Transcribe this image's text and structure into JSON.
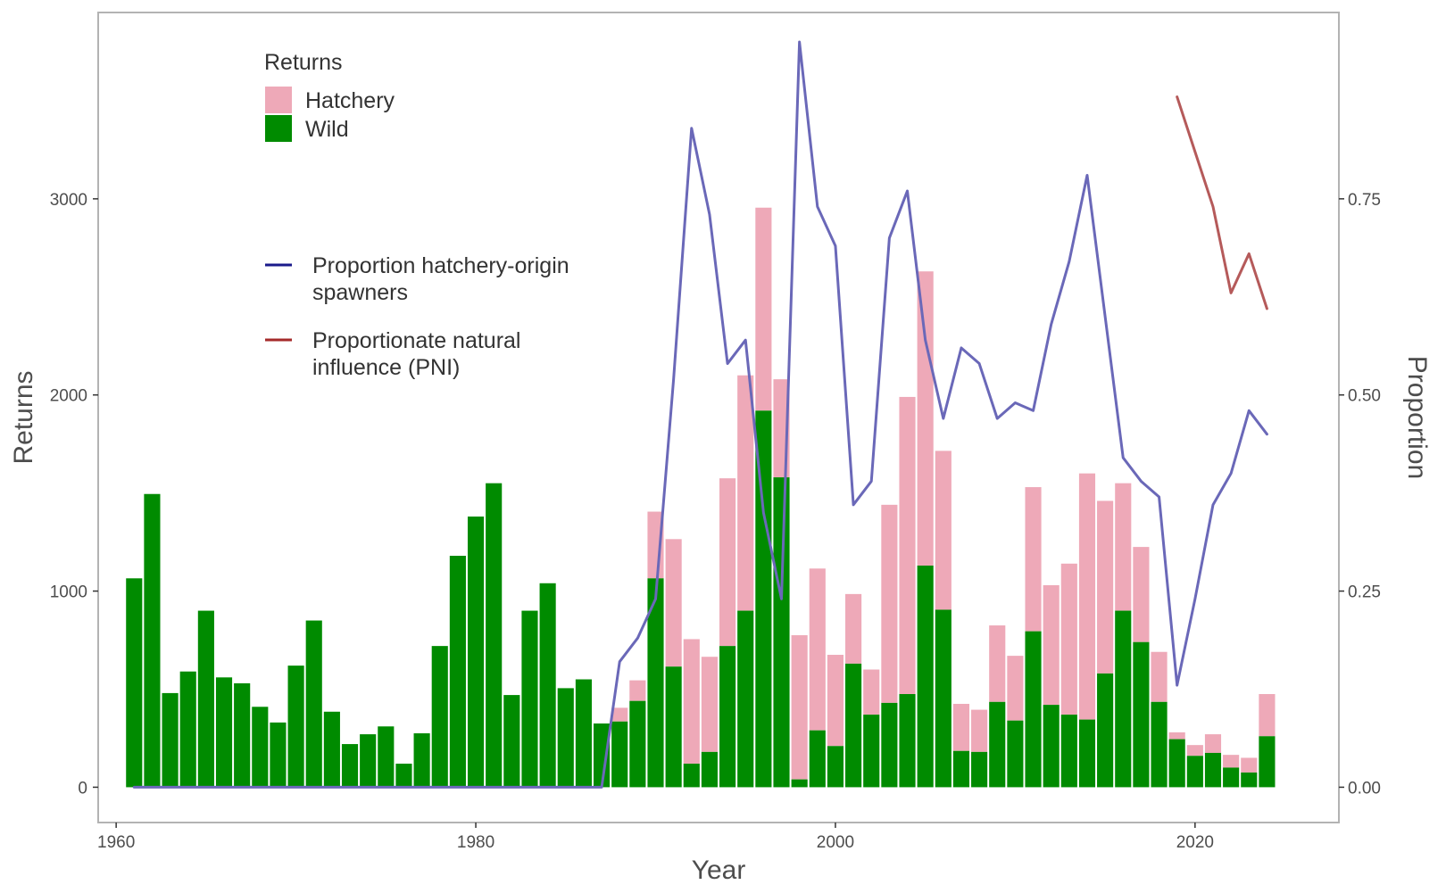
{
  "chart_data": {
    "type": "bar",
    "stacked": true,
    "secondary_axis": true,
    "xlabel": "Year",
    "ylabel": "Returns",
    "y2label": "Proportion",
    "xlim": [
      1959,
      2028
    ],
    "ylim": [
      -180,
      3950
    ],
    "y2lim": [
      -0.045,
      0.9875
    ],
    "x_ticks": [
      1960,
      1980,
      2000,
      2020
    ],
    "y_ticks": [
      0,
      1000,
      2000,
      3000
    ],
    "y2_ticks": [
      "0.00",
      "0.25",
      "0.50",
      "0.75"
    ],
    "y2_tick_values": [
      0,
      0.25,
      0.5,
      0.75
    ],
    "grid": false,
    "colors": {
      "hatchery": "#eea9b8",
      "wild": "#008b00",
      "phos": "#6a68b8",
      "pni": "#b55a5a",
      "phos_legend": "#1a1a8b",
      "pni_legend": "#a52a2a",
      "frame": "#b3b3b3"
    },
    "legend_bars": {
      "title": "Returns",
      "entries": [
        {
          "label": "Hatchery",
          "color_key": "hatchery"
        },
        {
          "label": "Wild",
          "color_key": "wild"
        }
      ]
    },
    "legend_lines": [
      {
        "label_lines": [
          "Proportion hatchery-origin",
          "spawners"
        ],
        "color_key": "phos_legend"
      },
      {
        "label_lines": [
          "Proportionate natural",
          "influence (PNI)"
        ],
        "color_key": "pni_legend"
      }
    ],
    "years": [
      1961,
      1962,
      1963,
      1964,
      1965,
      1966,
      1967,
      1968,
      1969,
      1970,
      1971,
      1972,
      1973,
      1974,
      1975,
      1976,
      1977,
      1978,
      1979,
      1980,
      1981,
      1982,
      1983,
      1984,
      1985,
      1986,
      1987,
      1988,
      1989,
      1990,
      1991,
      1992,
      1993,
      1994,
      1995,
      1996,
      1997,
      1998,
      1999,
      2000,
      2001,
      2002,
      2003,
      2004,
      2005,
      2006,
      2007,
      2008,
      2009,
      2010,
      2011,
      2012,
      2013,
      2014,
      2015,
      2016,
      2017,
      2018,
      2019,
      2020,
      2021,
      2022,
      2023,
      2024
    ],
    "series": [
      {
        "name": "Wild",
        "values": [
          1065,
          1495,
          480,
          590,
          900,
          560,
          530,
          410,
          330,
          620,
          850,
          385,
          220,
          270,
          310,
          120,
          275,
          720,
          1180,
          1380,
          1550,
          470,
          900,
          1040,
          505,
          550,
          325,
          335,
          440,
          1065,
          615,
          120,
          180,
          720,
          900,
          1920,
          1580,
          40,
          290,
          210,
          630,
          370,
          430,
          475,
          1130,
          905,
          185,
          180,
          435,
          340,
          795,
          420,
          370,
          345,
          580,
          900,
          740,
          435,
          245,
          160,
          175,
          100,
          75,
          260
        ]
      },
      {
        "name": "Hatchery",
        "values": [
          0,
          0,
          0,
          0,
          0,
          0,
          0,
          0,
          0,
          0,
          0,
          0,
          0,
          0,
          0,
          0,
          0,
          0,
          0,
          0,
          0,
          0,
          0,
          0,
          0,
          0,
          0,
          70,
          105,
          340,
          650,
          635,
          485,
          855,
          1200,
          1035,
          500,
          735,
          825,
          465,
          355,
          230,
          1010,
          1515,
          1500,
          810,
          240,
          215,
          390,
          330,
          735,
          610,
          770,
          1255,
          880,
          650,
          485,
          255,
          35,
          55,
          95,
          65,
          75,
          215
        ]
      }
    ],
    "phos": {
      "name": "Proportion hatchery-origin spawners",
      "x": [
        1961,
        1962,
        1963,
        1964,
        1965,
        1966,
        1967,
        1968,
        1969,
        1970,
        1971,
        1972,
        1973,
        1974,
        1975,
        1976,
        1977,
        1978,
        1979,
        1980,
        1981,
        1982,
        1983,
        1984,
        1985,
        1986,
        1987,
        1988,
        1989,
        1990,
        1991,
        1992,
        1993,
        1994,
        1995,
        1996,
        1997,
        1998,
        1999,
        2000,
        2001,
        2002,
        2003,
        2004,
        2005,
        2006,
        2007,
        2008,
        2009,
        2010,
        2011,
        2012,
        2013,
        2014,
        2015,
        2016,
        2017,
        2018,
        2019,
        2020,
        2021,
        2022,
        2023,
        2024
      ],
      "y": [
        0,
        0,
        0,
        0,
        0,
        0,
        0,
        0,
        0,
        0,
        0,
        0,
        0,
        0,
        0,
        0,
        0,
        0,
        0,
        0,
        0,
        0,
        0,
        0,
        0,
        0,
        0,
        0.16,
        0.19,
        0.24,
        0.52,
        0.84,
        0.73,
        0.54,
        0.57,
        0.35,
        0.24,
        0.95,
        0.74,
        0.69,
        0.36,
        0.39,
        0.7,
        0.76,
        0.57,
        0.47,
        0.56,
        0.54,
        0.47,
        0.49,
        0.48,
        0.59,
        0.67,
        0.78,
        0.6,
        0.42,
        0.39,
        0.37,
        0.13,
        0.24,
        0.36,
        0.4,
        0.48,
        0.45
      ]
    },
    "pni": {
      "name": "Proportionate natural influence (PNI)",
      "x": [
        2019,
        2020,
        2021,
        2022,
        2023,
        2024
      ],
      "y": [
        0.88,
        0.81,
        0.74,
        0.63,
        0.68,
        0.61
      ]
    }
  }
}
